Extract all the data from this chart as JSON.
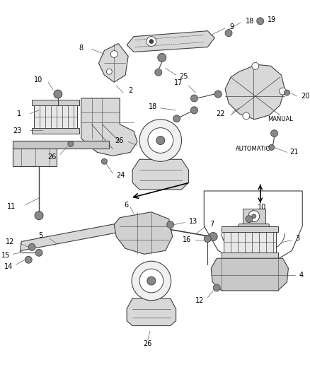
{
  "background_color": "#ffffff",
  "figsize": [
    4.39,
    5.33
  ],
  "dpi": 100,
  "line_color": "#404040",
  "label_color": "#000000"
}
